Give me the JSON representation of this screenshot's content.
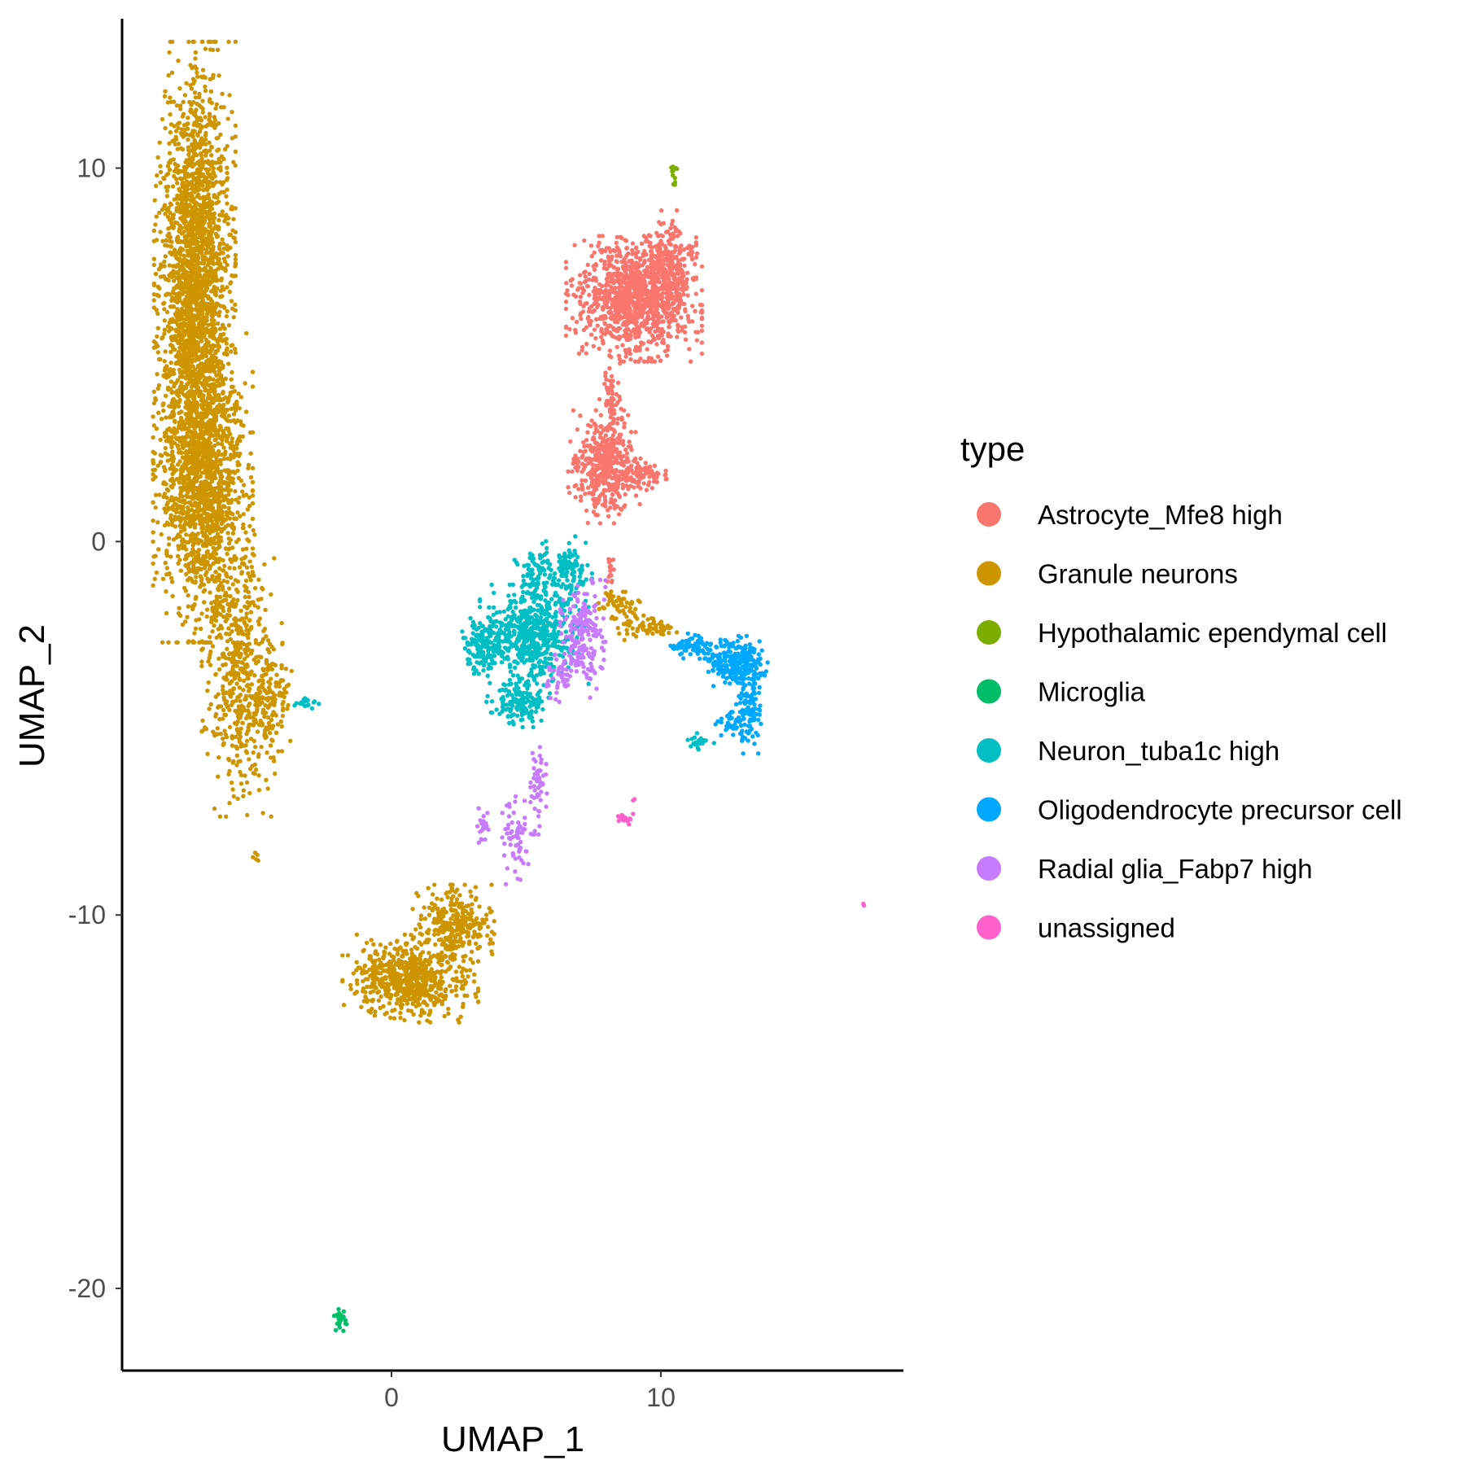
{
  "chart_data": {
    "type": "scatter",
    "title": "",
    "xlabel": "UMAP_1",
    "ylabel": "UMAP_2",
    "xlim": [
      -10,
      19
    ],
    "ylim": [
      -22.2,
      14
    ],
    "x_ticks": [
      "0",
      "10"
    ],
    "y_ticks": [
      "10",
      "0",
      "-10",
      "-20"
    ],
    "grid": false,
    "legend": {
      "title": "type",
      "position": "right"
    },
    "series": [
      {
        "name": "Astrocyte_Mfe8 high",
        "color": "#F8766D",
        "clusters": [
          {
            "center": [
              9.0,
              6.5
            ],
            "spread": [
              1.5,
              1.0
            ],
            "n": 1100
          },
          {
            "center": [
              10.3,
              7.4
            ],
            "spread": [
              0.6,
              0.9
            ],
            "n": 250
          },
          {
            "center": [
              7.9,
              2.0
            ],
            "spread": [
              0.8,
              0.9
            ],
            "n": 420
          },
          {
            "center": [
              9.3,
              1.8
            ],
            "spread": [
              0.6,
              0.25
            ],
            "n": 80
          },
          {
            "center": [
              8.1,
              3.6
            ],
            "spread": [
              0.25,
              0.9
            ],
            "n": 70
          },
          {
            "center": [
              8.1,
              -0.8
            ],
            "spread": [
              0.15,
              0.4
            ],
            "n": 15
          }
        ]
      },
      {
        "name": "Granule neurons",
        "color": "#CD9600",
        "clusters": [
          {
            "center": [
              -7.3,
              7.0
            ],
            "spread": [
              0.9,
              3.8
            ],
            "n": 2200
          },
          {
            "center": [
              -7.0,
              1.5
            ],
            "spread": [
              1.1,
              2.5
            ],
            "n": 1400
          },
          {
            "center": [
              -5.7,
              -3.5
            ],
            "spread": [
              0.8,
              2.3
            ],
            "n": 500
          },
          {
            "center": [
              -4.5,
              -4.2
            ],
            "spread": [
              0.5,
              1.2
            ],
            "n": 150
          },
          {
            "center": [
              0.7,
              -11.7
            ],
            "spread": [
              1.5,
              0.7
            ],
            "n": 650
          },
          {
            "center": [
              2.3,
              -10.2
            ],
            "spread": [
              0.9,
              0.6
            ],
            "n": 300
          },
          {
            "center": [
              8.5,
              -1.8
            ],
            "spread": [
              0.5,
              0.4
            ],
            "n": 60
          },
          {
            "center": [
              9.5,
              -2.3
            ],
            "spread": [
              0.7,
              0.2
            ],
            "n": 60
          },
          {
            "center": [
              -5.0,
              -8.5
            ],
            "spread": [
              0.1,
              0.1
            ],
            "n": 5
          }
        ]
      },
      {
        "name": "Hypothalamic ependymal cell",
        "color": "#7CAE00",
        "clusters": [
          {
            "center": [
              10.5,
              9.8
            ],
            "spread": [
              0.1,
              0.2
            ],
            "n": 12
          }
        ]
      },
      {
        "name": "Microglia",
        "color": "#00BE67",
        "clusters": [
          {
            "center": [
              -1.9,
              -20.8
            ],
            "spread": [
              0.18,
              0.2
            ],
            "n": 25
          }
        ]
      },
      {
        "name": "Neuron_tuba1c high",
        "color": "#00BFC4",
        "clusters": [
          {
            "center": [
              5.3,
              -2.5
            ],
            "spread": [
              1.2,
              0.8
            ],
            "n": 550
          },
          {
            "center": [
              3.4,
              -2.7
            ],
            "spread": [
              0.5,
              0.5
            ],
            "n": 150
          },
          {
            "center": [
              4.7,
              -4.3
            ],
            "spread": [
              0.7,
              0.4
            ],
            "n": 150
          },
          {
            "center": [
              5.4,
              -1.0
            ],
            "spread": [
              0.5,
              0.6
            ],
            "n": 100
          },
          {
            "center": [
              6.6,
              -0.7
            ],
            "spread": [
              0.5,
              0.5
            ],
            "n": 100
          },
          {
            "center": [
              -3.2,
              -4.3
            ],
            "spread": [
              0.3,
              0.1
            ],
            "n": 20
          },
          {
            "center": [
              11.5,
              -5.4
            ],
            "spread": [
              0.3,
              0.2
            ],
            "n": 25
          }
        ]
      },
      {
        "name": "Oligodendrocyte precursor cell",
        "color": "#00A9FF",
        "clusters": [
          {
            "center": [
              12.8,
              -3.2
            ],
            "spread": [
              0.7,
              0.4
            ],
            "n": 250
          },
          {
            "center": [
              11.2,
              -2.8
            ],
            "spread": [
              0.6,
              0.2
            ],
            "n": 80
          },
          {
            "center": [
              13.3,
              -4.5
            ],
            "spread": [
              0.3,
              0.7
            ],
            "n": 100
          },
          {
            "center": [
              12.7,
              -4.9
            ],
            "spread": [
              0.4,
              0.2
            ],
            "n": 40
          }
        ]
      },
      {
        "name": "Radial glia_Fabp7 high",
        "color": "#C77CFF",
        "clusters": [
          {
            "center": [
              7.1,
              -2.5
            ],
            "spread": [
              0.5,
              1.0
            ],
            "n": 200
          },
          {
            "center": [
              6.2,
              -3.7
            ],
            "spread": [
              0.3,
              0.4
            ],
            "n": 40
          },
          {
            "center": [
              5.4,
              -6.5
            ],
            "spread": [
              0.3,
              0.8
            ],
            "n": 60
          },
          {
            "center": [
              4.6,
              -8.0
            ],
            "spread": [
              0.35,
              0.7
            ],
            "n": 60
          },
          {
            "center": [
              3.4,
              -7.7
            ],
            "spread": [
              0.15,
              0.4
            ],
            "n": 20
          }
        ]
      },
      {
        "name": "unassigned",
        "color": "#FF61CC",
        "clusters": [
          {
            "center": [
              8.7,
              -7.4
            ],
            "spread": [
              0.25,
              0.12
            ],
            "n": 14
          },
          {
            "center": [
              17.5,
              -9.7
            ],
            "spread": [
              0.05,
              0.05
            ],
            "n": 3
          },
          {
            "center": [
              9.0,
              -6.9
            ],
            "spread": [
              0.05,
              0.05
            ],
            "n": 2
          }
        ]
      }
    ]
  }
}
